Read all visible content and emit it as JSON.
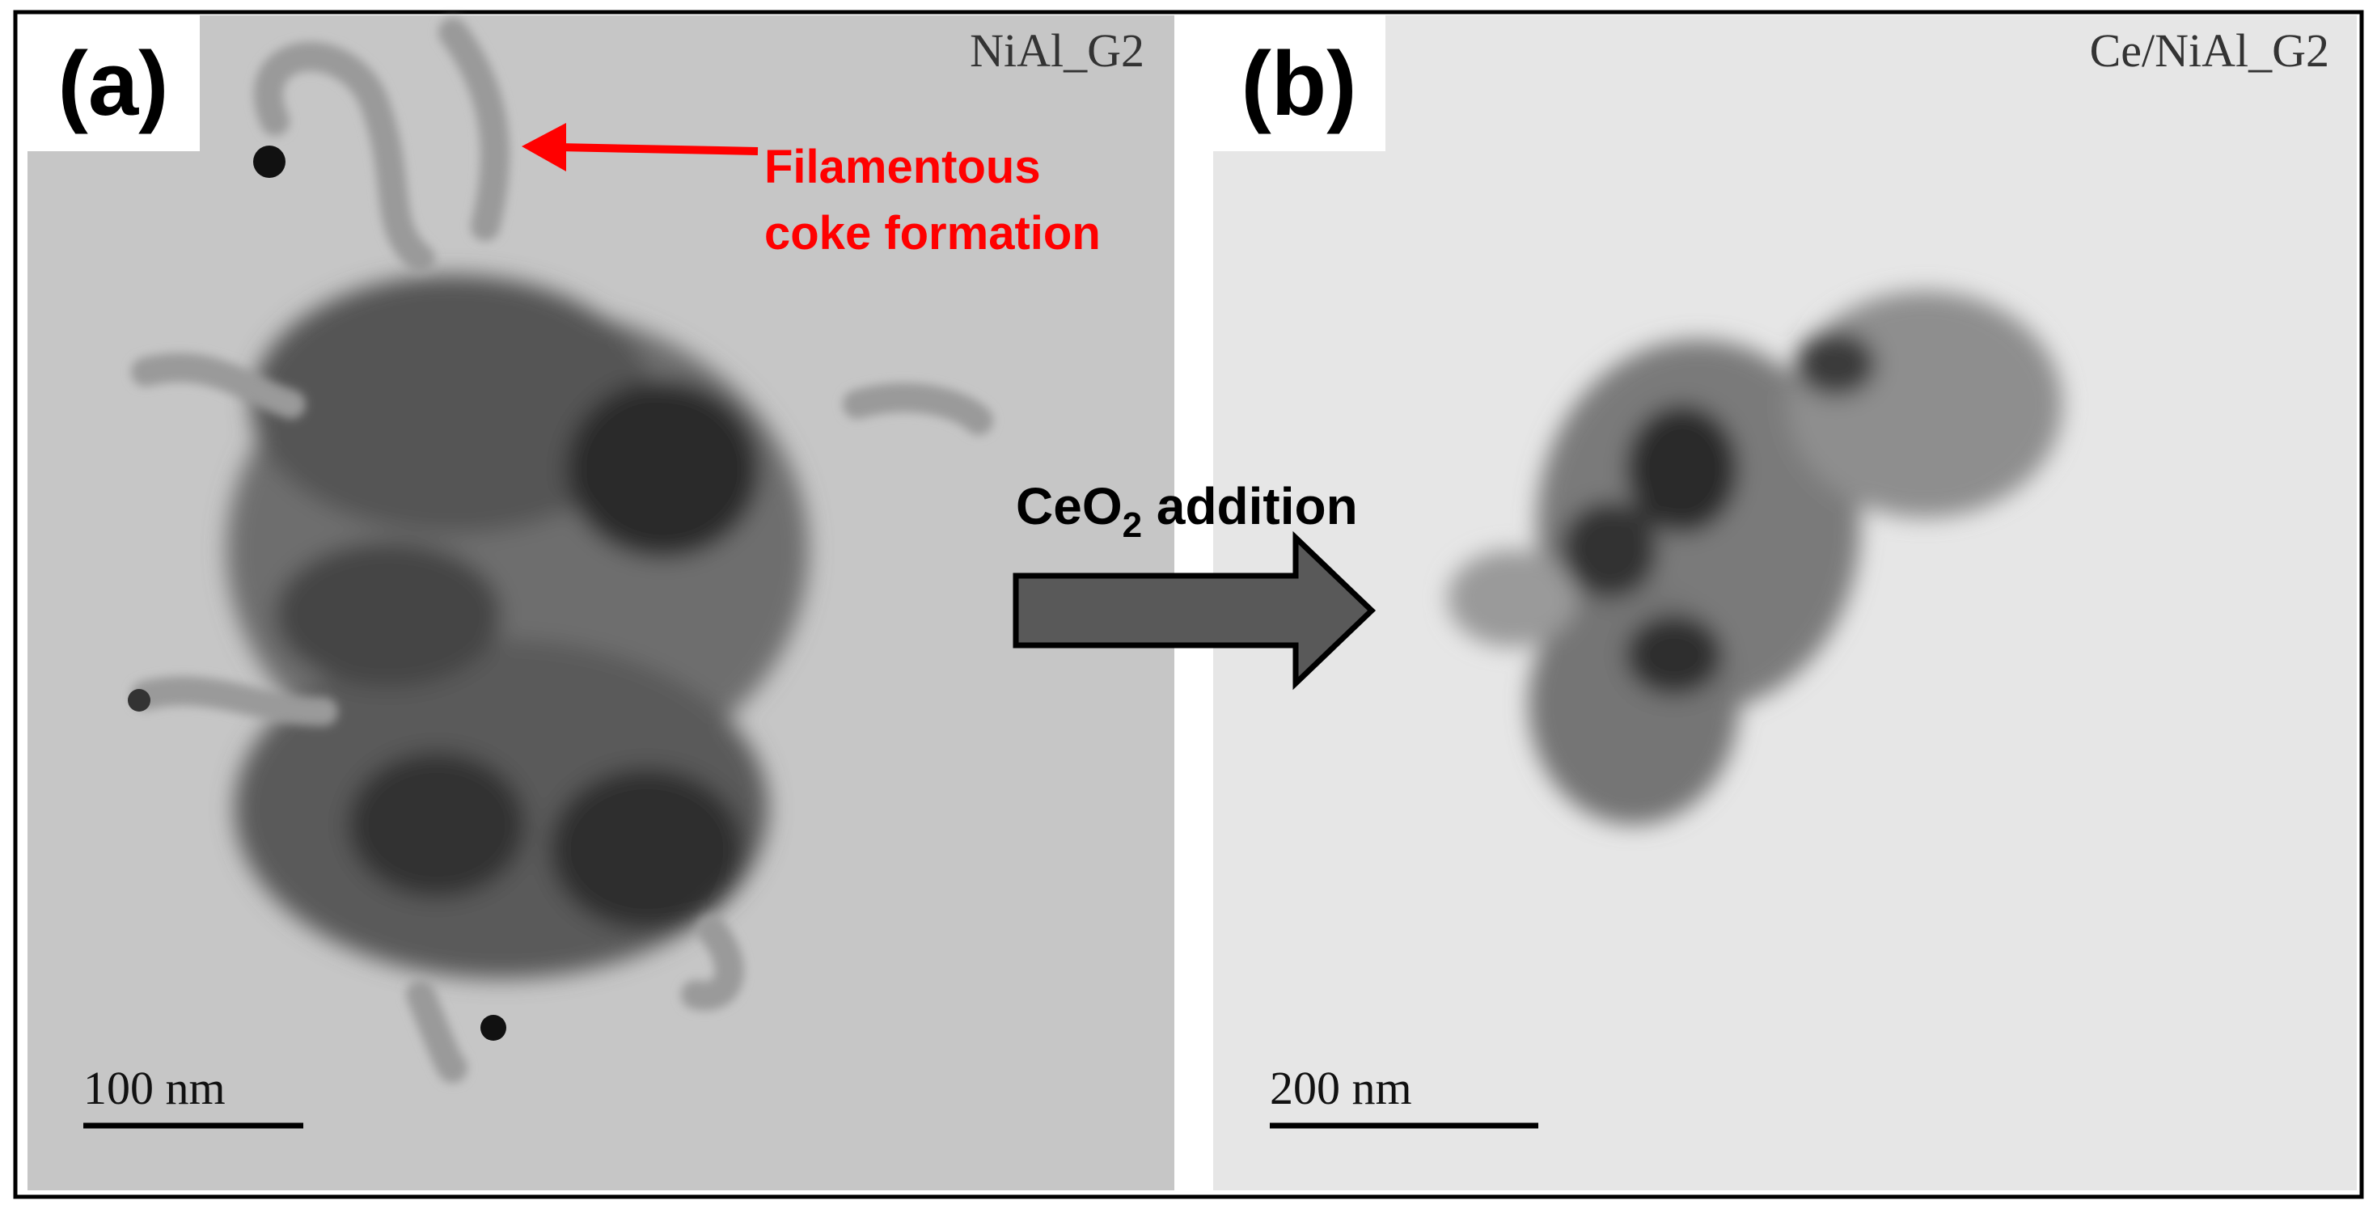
{
  "panels": [
    {
      "label": "(a)",
      "sample": "NiAl_G2",
      "scale_bar": "100 nm",
      "annotation": {
        "lines": [
          "Filamentous",
          "coke formation"
        ]
      }
    },
    {
      "label": "(b)",
      "sample": "Ce/NiAl_G2",
      "scale_bar": "200 nm"
    }
  ],
  "arrow_label": {
    "main": "CeO",
    "subscript": "2",
    "rest": " addition"
  }
}
